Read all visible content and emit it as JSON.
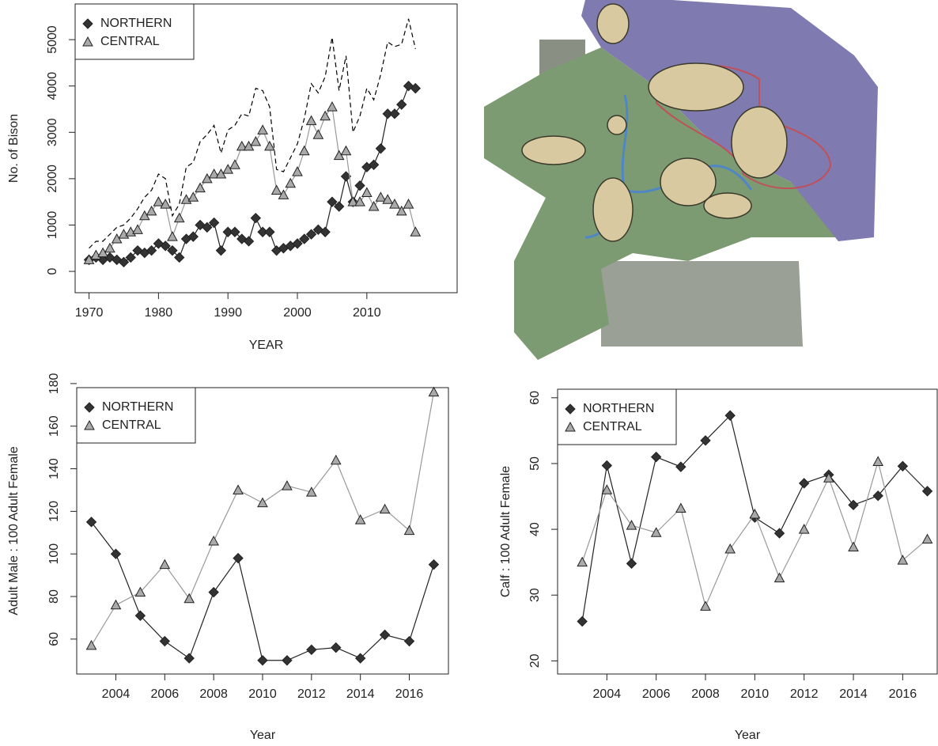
{
  "chart_data": [
    {
      "type": "line",
      "x_label": "YEAR",
      "y_label": "No. of Bison",
      "x": [
        1970,
        1971,
        1972,
        1973,
        1974,
        1975,
        1976,
        1977,
        1978,
        1979,
        1980,
        1981,
        1982,
        1983,
        1984,
        1985,
        1986,
        1987,
        1988,
        1989,
        1990,
        1991,
        1992,
        1993,
        1994,
        1995,
        1996,
        1997,
        1998,
        1999,
        2000,
        2001,
        2002,
        2003,
        2004,
        2005,
        2006,
        2007,
        2008,
        2009,
        2010,
        2011,
        2012,
        2013,
        2014,
        2015,
        2016,
        2017
      ],
      "series": [
        {
          "name": "NORTHERN",
          "color": "#333333",
          "marker": "diamond",
          "values": [
            250,
            300,
            250,
            300,
            250,
            200,
            300,
            450,
            400,
            450,
            600,
            550,
            450,
            300,
            700,
            750,
            1000,
            950,
            1050,
            450,
            850,
            850,
            700,
            650,
            1150,
            850,
            850,
            450,
            500,
            550,
            600,
            700,
            800,
            900,
            850,
            1500,
            1400,
            2050,
            1500,
            1850,
            2250,
            2300,
            2650,
            3400,
            3400,
            3600,
            4000,
            3950
          ]
        },
        {
          "name": "CENTRAL",
          "color": "#aaaaaa",
          "marker": "triangle",
          "values": [
            250,
            350,
            400,
            500,
            700,
            800,
            850,
            900,
            1200,
            1300,
            1500,
            1450,
            750,
            1150,
            1550,
            1600,
            1800,
            2000,
            2100,
            2100,
            2200,
            2300,
            2700,
            2700,
            2800,
            3050,
            2700,
            1750,
            1650,
            1900,
            2150,
            2600,
            3250,
            2950,
            3350,
            3550,
            2500,
            2600,
            1500,
            1500,
            1700,
            1400,
            1600,
            1550,
            1450,
            1300,
            1450,
            850
          ]
        },
        {
          "color": "#000000",
          "dashed": true,
          "values": [
            500,
            650,
            650,
            800,
            950,
            1000,
            1150,
            1350,
            1600,
            1750,
            2100,
            2000,
            1200,
            1450,
            2250,
            2350,
            2800,
            2950,
            3150,
            2550,
            3050,
            3150,
            3400,
            3350,
            3950,
            3900,
            3550,
            2200,
            2150,
            2450,
            2750,
            3300,
            4050,
            3850,
            4200,
            5050,
            3900,
            4650,
            3000,
            3350,
            3950,
            3700,
            4250,
            4950,
            4850,
            4900,
            5450,
            4800
          ]
        }
      ],
      "xlim": [
        1968,
        2023
      ],
      "xticks": [
        1970,
        1980,
        1990,
        2000,
        2010
      ],
      "ylim": [
        -460,
        5770
      ],
      "yticks": [
        0,
        1000,
        2000,
        3000,
        4000,
        5000
      ],
      "legend": "top-left"
    },
    {
      "type": "line",
      "x_label": "Year",
      "y_label": "Adult Male : 100 Adult Female",
      "x": [
        2003,
        2004,
        2005,
        2006,
        2007,
        2008,
        2009,
        2010,
        2011,
        2012,
        2013,
        2014,
        2015,
        2016,
        2017
      ],
      "series": [
        {
          "name": "NORTHERN",
          "color": "#333333",
          "marker": "diamond",
          "values": [
            115,
            100,
            71,
            59,
            51,
            82,
            98,
            50,
            50,
            55,
            56,
            51,
            62,
            59,
            95
          ]
        },
        {
          "name": "CENTRAL",
          "color": "#aaaaaa",
          "marker": "triangle",
          "values": [
            57,
            76,
            82,
            95,
            79,
            106,
            130,
            124,
            132,
            129,
            144,
            116,
            121,
            111,
            176
          ]
        }
      ],
      "xlim": [
        2002.4,
        2017.6
      ],
      "xticks": [
        2004,
        2006,
        2008,
        2010,
        2012,
        2014,
        2016
      ],
      "ylim": [
        43.6,
        178.1
      ],
      "yticks": [
        60,
        80,
        100,
        120,
        140,
        160,
        180
      ],
      "legend": "top-left"
    },
    {
      "type": "line",
      "x_label": "Year",
      "y_label": "Calf : 100 Adult Female",
      "x": [
        2003,
        2004,
        2005,
        2006,
        2007,
        2008,
        2009,
        2010,
        2011,
        2012,
        2013,
        2014,
        2015,
        2016,
        2017
      ],
      "series": [
        {
          "name": "NORTHERN",
          "color": "#333333",
          "marker": "diamond",
          "values": [
            26,
            49.7,
            34.8,
            51,
            49.5,
            53.5,
            57.3,
            41.8,
            39.4,
            47,
            48.3,
            43.7,
            45.1,
            49.6,
            45.8
          ]
        },
        {
          "name": "CENTRAL",
          "color": "#aaaaaa",
          "marker": "triangle",
          "values": [
            35,
            46,
            40.6,
            39.5,
            43.2,
            28.3,
            37,
            42.3,
            32.6,
            40,
            47.8,
            37.3,
            50.3,
            35.3,
            38.5
          ]
        }
      ],
      "xlim": [
        2002,
        2017.4
      ],
      "xticks": [
        2004,
        2006,
        2008,
        2010,
        2012,
        2014,
        2016
      ],
      "ylim": [
        18,
        61.3
      ],
      "yticks": [
        20,
        30,
        40,
        50,
        60
      ],
      "legend": "top-left"
    }
  ]
}
